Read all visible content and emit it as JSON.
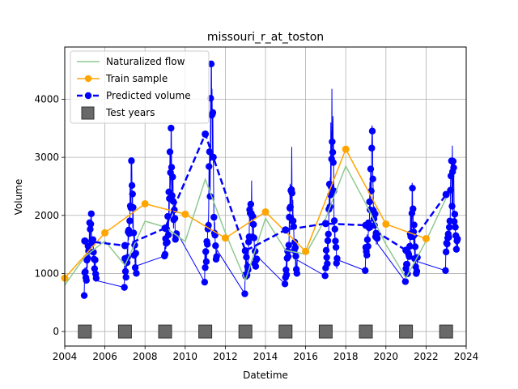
{
  "chart_data": {
    "type": "line",
    "title": "missouri_r_at_toston",
    "xlabel": "Datetime",
    "ylabel": "Volume",
    "xlim": [
      2004,
      2024
    ],
    "ylim": [
      -250,
      4900
    ],
    "x_ticks": [
      "2004",
      "2006",
      "2008",
      "2010",
      "2012",
      "2014",
      "2016",
      "2018",
      "2020",
      "2022",
      "2024"
    ],
    "y_ticks": [
      "0",
      "1000",
      "2000",
      "3000",
      "4000"
    ],
    "grid": true,
    "legend_position": "top-left",
    "colors": {
      "naturalized": "#8fc98f",
      "train": "#ffa500",
      "predicted": "#0000ff",
      "daily": "#0000ff",
      "test": "#696969"
    },
    "legend": [
      {
        "label": "Naturalized flow",
        "style": "line",
        "color": "#8fc98f"
      },
      {
        "label": "Train sample",
        "style": "line-marker",
        "color": "#ffa500"
      },
      {
        "label": "Predicted volume",
        "style": "dashed-marker",
        "color": "#0000ff"
      },
      {
        "label": "Test years",
        "style": "square",
        "color": "#696969"
      }
    ],
    "series": [
      {
        "name": "Naturalized flow",
        "points": [
          [
            2004,
            800
          ],
          [
            2005,
            1290
          ],
          [
            2006,
            1560
          ],
          [
            2007,
            1140
          ],
          [
            2008,
            1900
          ],
          [
            2009,
            1800
          ],
          [
            2010,
            1550
          ],
          [
            2011,
            2620
          ],
          [
            2012,
            1700
          ],
          [
            2013,
            880
          ],
          [
            2014,
            1950
          ],
          [
            2015,
            1400
          ],
          [
            2016,
            1330
          ],
          [
            2017,
            1950
          ],
          [
            2018,
            2850
          ],
          [
            2019,
            2200
          ],
          [
            2020,
            1500
          ],
          [
            2021,
            920
          ],
          [
            2022,
            1560
          ],
          [
            2023,
            2300
          ]
        ]
      },
      {
        "name": "Train sample",
        "points": [
          [
            2004,
            920
          ],
          [
            2006,
            1700
          ],
          [
            2008,
            2200
          ],
          [
            2010,
            2020
          ],
          [
            2012,
            1610
          ],
          [
            2014,
            2060
          ],
          [
            2016,
            1380
          ],
          [
            2018,
            3140
          ],
          [
            2020,
            1850
          ],
          [
            2022,
            1600
          ]
        ]
      },
      {
        "name": "Predicted volume",
        "points": [
          [
            2005,
            1560
          ],
          [
            2007,
            1480
          ],
          [
            2009,
            1780
          ],
          [
            2011,
            3400
          ],
          [
            2013,
            1390
          ],
          [
            2015,
            1750
          ],
          [
            2017,
            1860
          ],
          [
            2019,
            1830
          ],
          [
            2021,
            1400
          ],
          [
            2023,
            2360
          ]
        ]
      },
      {
        "name": "Test years",
        "points": [
          [
            2005,
            0
          ],
          [
            2007,
            0
          ],
          [
            2009,
            0
          ],
          [
            2011,
            0
          ],
          [
            2013,
            0
          ],
          [
            2015,
            0
          ],
          [
            2017,
            0
          ],
          [
            2019,
            0
          ],
          [
            2021,
            0
          ],
          [
            2023,
            0
          ]
        ]
      }
    ],
    "daily_segments": [
      {
        "year": 2005,
        "start": 2004.97,
        "end": 2005.58,
        "base": 1000,
        "peak": 2080,
        "min": 620
      },
      {
        "year": 2007,
        "start": 2006.97,
        "end": 2007.58,
        "base": 1100,
        "peak": 2950,
        "min": 760
      },
      {
        "year": 2009,
        "start": 2008.97,
        "end": 2009.58,
        "base": 1500,
        "peak": 3550,
        "min": 1300
      },
      {
        "year": 2011,
        "start": 2010.97,
        "end": 2011.58,
        "base": 1250,
        "peak": 4650,
        "min": 850
      },
      {
        "year": 2013,
        "start": 2012.97,
        "end": 2013.58,
        "base": 1100,
        "peak": 2600,
        "min": 650
      },
      {
        "year": 2015,
        "start": 2014.97,
        "end": 2015.58,
        "base": 1050,
        "peak": 3180,
        "min": 820
      },
      {
        "year": 2017,
        "start": 2016.97,
        "end": 2017.58,
        "base": 1200,
        "peak": 4180,
        "min": 960
      },
      {
        "year": 2019,
        "start": 2018.97,
        "end": 2019.58,
        "base": 1400,
        "peak": 3550,
        "min": 1050
      },
      {
        "year": 2021,
        "start": 2020.97,
        "end": 2021.58,
        "base": 1100,
        "peak": 2560,
        "min": 860
      },
      {
        "year": 2023,
        "start": 2022.97,
        "end": 2023.58,
        "base": 1450,
        "peak": 3200,
        "min": 1050
      }
    ]
  }
}
